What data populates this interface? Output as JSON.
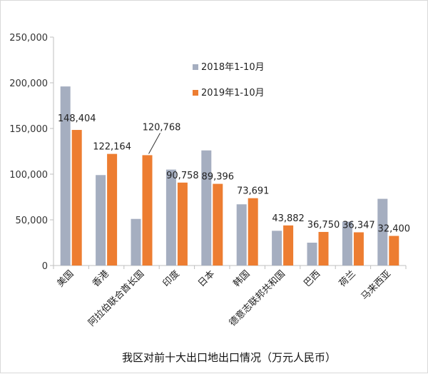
{
  "chart_data": {
    "type": "bar",
    "title": "我区对前十大出口地出口情况（万元人民币）",
    "categories": [
      "美国",
      "香港",
      "阿拉伯联合酋长国",
      "印度",
      "日本",
      "韩国",
      "德意志联邦共和国",
      "巴西",
      "荷兰",
      "马来西亚"
    ],
    "series": [
      {
        "name": "2018年1-10月",
        "color": "#a5aec0",
        "values": [
          196000,
          99000,
          51000,
          105000,
          126000,
          67000,
          38000,
          25000,
          48000,
          73000
        ]
      },
      {
        "name": "2019年1-10月",
        "color": "#ed7d31",
        "values": [
          148404,
          122164,
          120768,
          90758,
          89396,
          73691,
          43882,
          36750,
          36347,
          32400
        ]
      }
    ],
    "data_labels": [
      "148,404",
      "122,164",
      "120,768",
      "90,758",
      "89,396",
      "73,691",
      "43,882",
      "36,750",
      "36,347",
      "32,400"
    ],
    "yticks": [
      "0",
      "50,000",
      "100,000",
      "150,000",
      "200,000",
      "250,000"
    ],
    "ylim": [
      0,
      250000
    ],
    "legend_position": "top-center",
    "grid": false
  }
}
